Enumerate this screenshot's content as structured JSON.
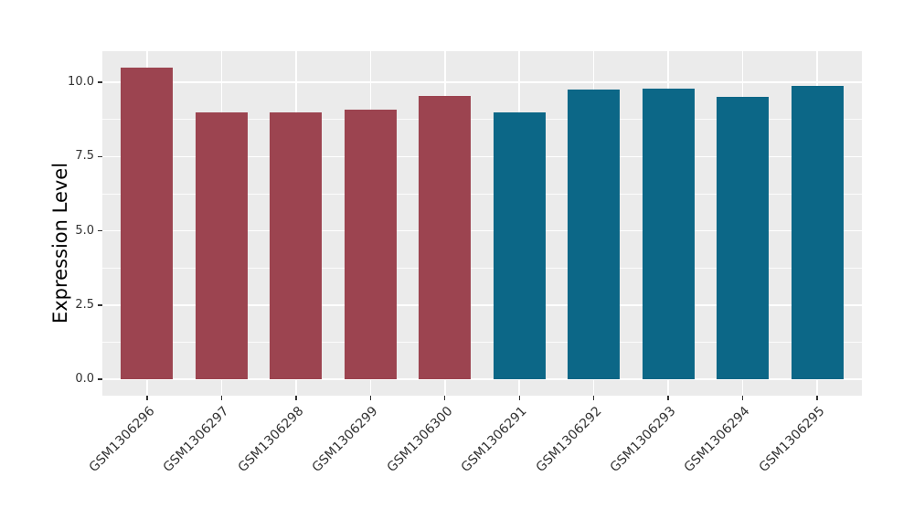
{
  "figure": {
    "background": "#FFFFFF",
    "panel_background": "#EBEBEB",
    "grid_color": "#FFFFFF",
    "axis_text_color": "#333333",
    "axis_title_color": "#000000"
  },
  "chart_data": {
    "type": "bar",
    "title": "",
    "xlabel": "",
    "ylabel": "Expression Level",
    "categories": [
      "GSM1306296",
      "GSM1306297",
      "GSM1306298",
      "GSM1306299",
      "GSM1306300",
      "GSM1306291",
      "GSM1306292",
      "GSM1306293",
      "GSM1306294",
      "GSM1306295"
    ],
    "values": [
      10.5,
      9.0,
      9.0,
      9.07,
      9.55,
      9.0,
      9.77,
      9.8,
      9.5,
      9.87
    ],
    "bar_colors": [
      "#9C4450",
      "#9C4450",
      "#9C4450",
      "#9C4450",
      "#9C4450",
      "#0C6787",
      "#0C6787",
      "#0C6787",
      "#0C6787",
      "#0C6787"
    ],
    "group_colors": {
      "first_group": "#9C4450",
      "second_group": "#0C6787"
    },
    "ylim": [
      -0.55,
      11.05
    ],
    "yticks": [
      0,
      2.5,
      5,
      7.5,
      10
    ],
    "ytick_labels": [
      "0.0",
      "2.5",
      "5.0",
      "7.5",
      "10.0"
    ],
    "yticks_minor": [
      1.25,
      3.75,
      6.25,
      8.75
    ],
    "grid": true,
    "legend": "none",
    "x_label_rotation_deg": 45,
    "bar_relative_width": 0.7
  }
}
